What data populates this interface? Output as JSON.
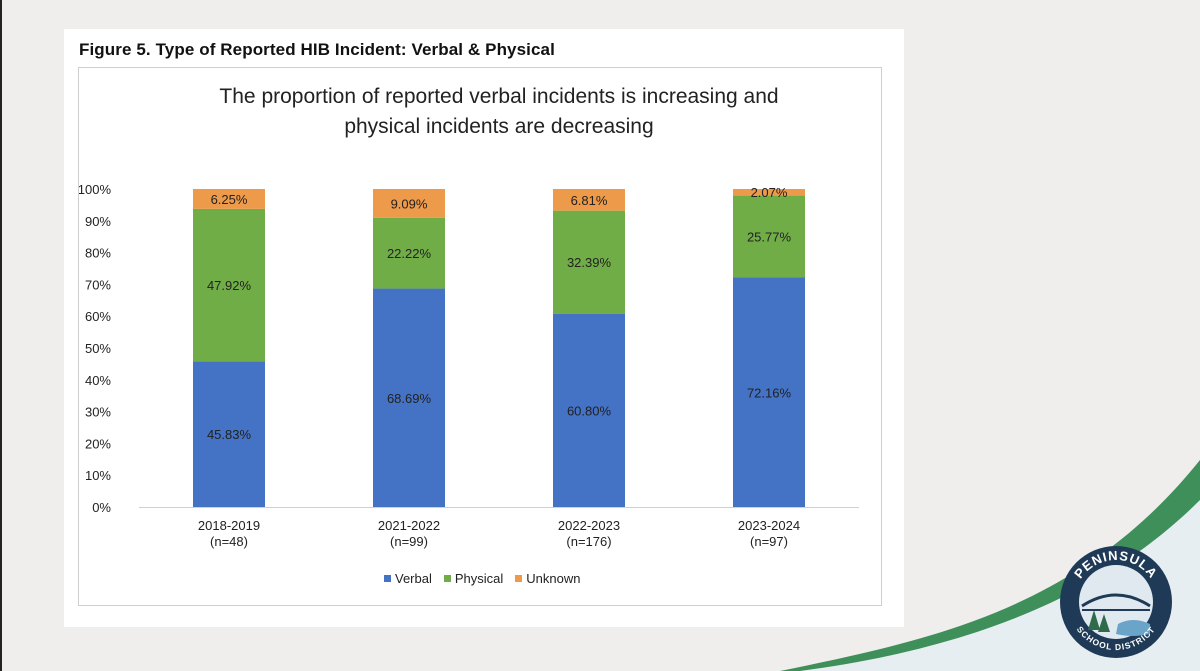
{
  "figure": {
    "caption": "Figure 5. Type of Reported HIB Incident: Verbal & Physical"
  },
  "chart_data": {
    "type": "bar",
    "stacked": true,
    "title": "The proportion of reported verbal incidents is increasing and physical incidents are decreasing",
    "title_lines": [
      "The proportion of reported verbal incidents is increasing and",
      "physical incidents are decreasing"
    ],
    "categories": [
      "2018-2019",
      "2021-2022",
      "2022-2023",
      "2023-2024"
    ],
    "category_sublabels": [
      "(n=48)",
      "(n=99)",
      "(n=176)",
      "(n=97)"
    ],
    "series": [
      {
        "name": "Verbal",
        "color": "#4472c4",
        "values": [
          45.83,
          68.69,
          60.8,
          72.16
        ],
        "labels": [
          "45.83%",
          "68.69%",
          "60.80%",
          "72.16%"
        ]
      },
      {
        "name": "Physical",
        "color": "#70ad47",
        "values": [
          47.92,
          22.22,
          32.39,
          25.77
        ],
        "labels": [
          "47.92%",
          "22.22%",
          "32.39%",
          "25.77%"
        ]
      },
      {
        "name": "Unknown",
        "color": "#ed9a4a",
        "values": [
          6.25,
          9.09,
          6.81,
          2.07
        ],
        "labels": [
          "6.25%",
          "9.09%",
          "6.81%",
          "2.07%"
        ]
      }
    ],
    "y_ticks": [
      "0%",
      "10%",
      "20%",
      "30%",
      "40%",
      "50%",
      "60%",
      "70%",
      "80%",
      "90%",
      "100%"
    ],
    "ylim": [
      0,
      100
    ],
    "grid": false,
    "legend_position": "bottom"
  },
  "logo": {
    "text_top": "PENINSULA",
    "text_bottom": "SCHOOL DISTRICT"
  },
  "colors": {
    "accent_green": "#3f8f5a",
    "logo_navy": "#1f3a56"
  }
}
